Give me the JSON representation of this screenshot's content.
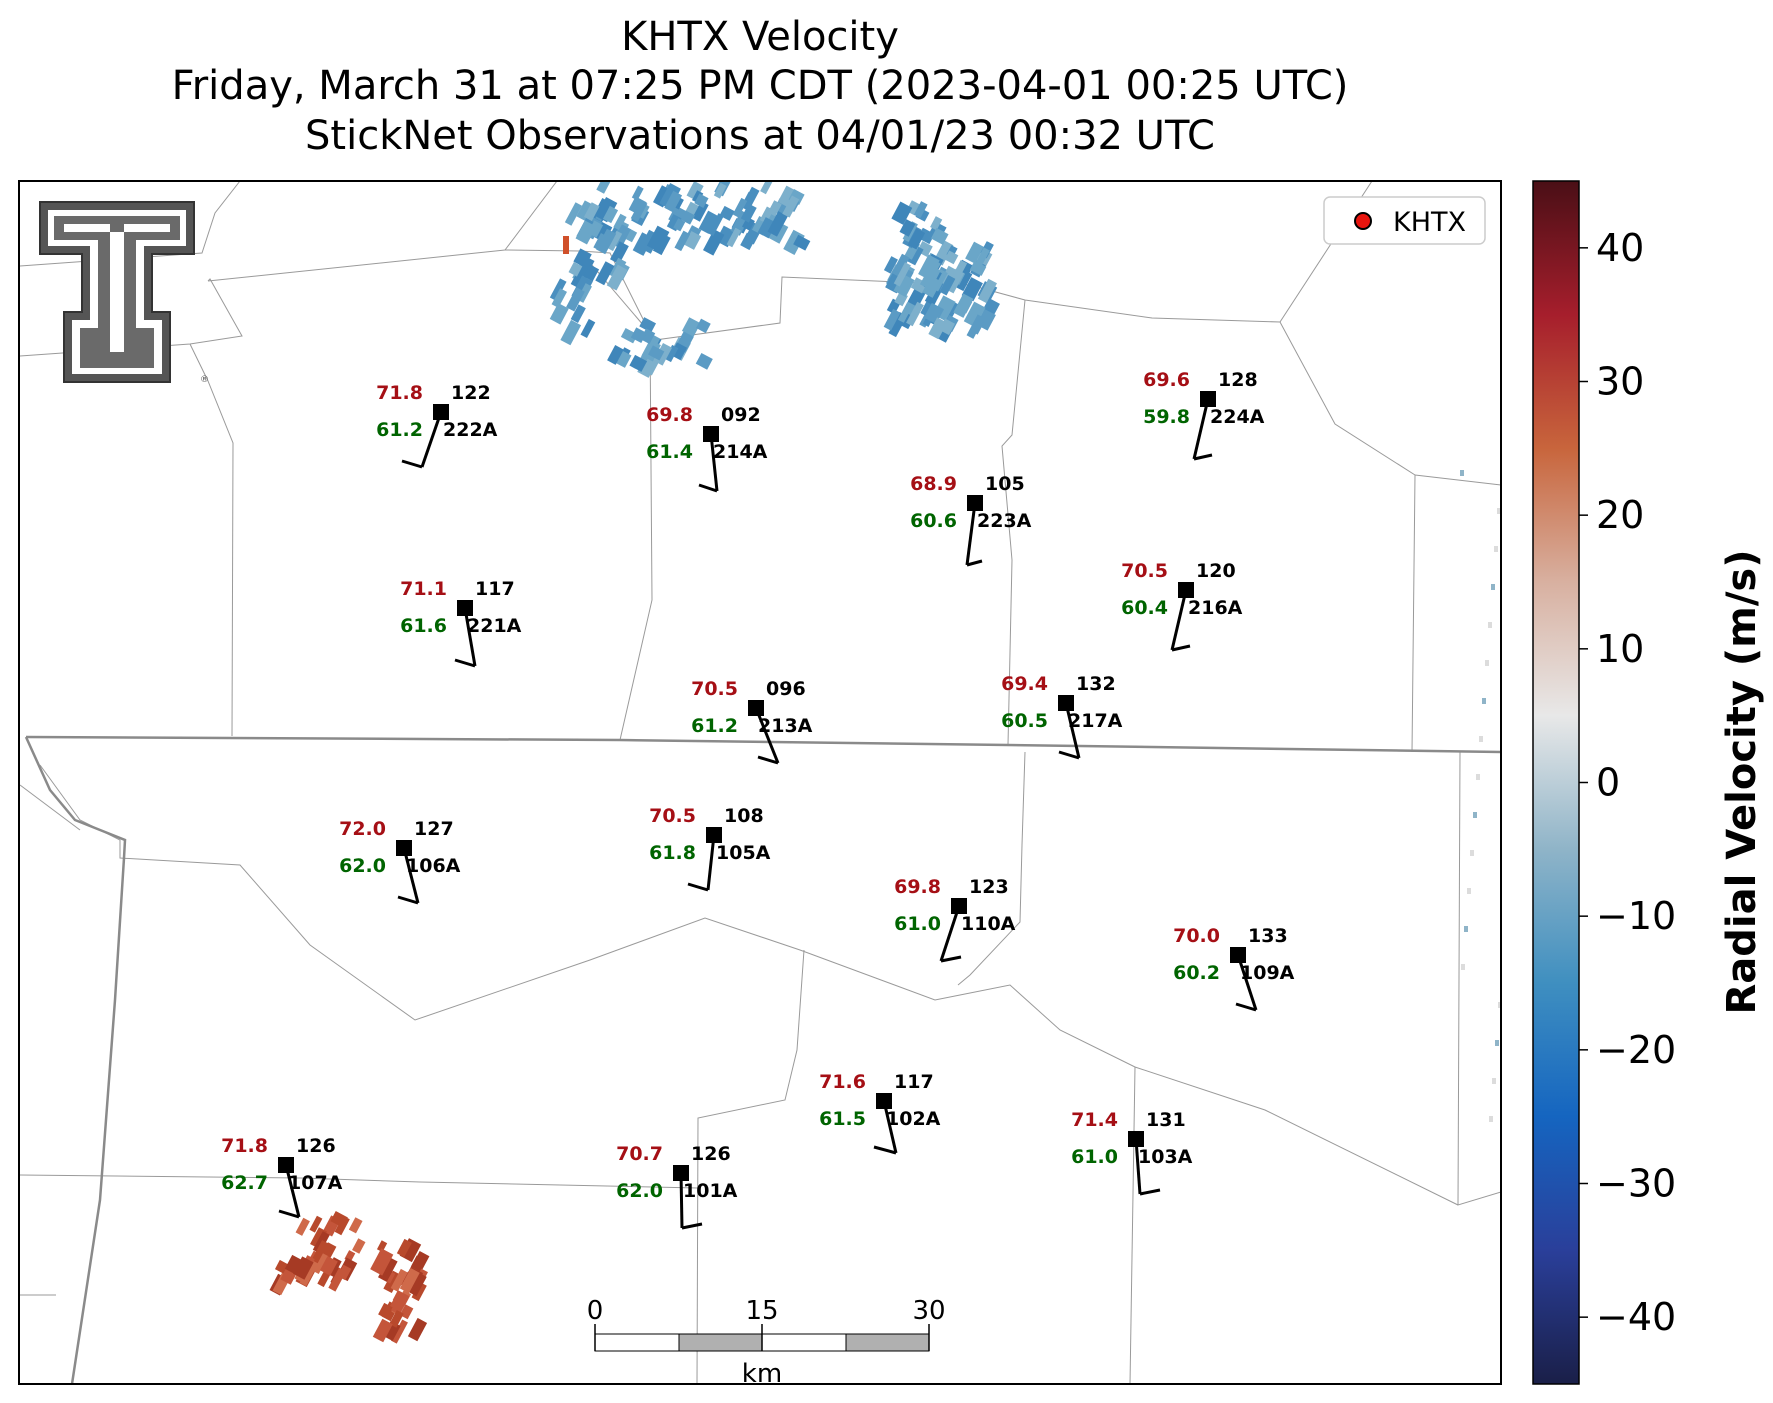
{
  "header": {
    "line1": "KHTX Velocity",
    "line2": "Friday, March 31 at 07:25 PM CDT (2023-04-01 00:25 UTC)",
    "line3": "StickNet Observations at 04/01/23 00:32 UTC"
  },
  "legend": {
    "label": "KHTX",
    "marker_color": "#e8150e"
  },
  "colorbar": {
    "label": "Radial Velocity (m/s)",
    "ticks": [
      "40",
      "30",
      "20",
      "10",
      "0",
      "−10",
      "−20",
      "−30",
      "−40"
    ],
    "min": -45,
    "max": 45,
    "colors": [
      "#1a1f48",
      "#2a3f9a",
      "#1565c0",
      "#3f8fc0",
      "#8fb4c8",
      "#e8e8e8",
      "#d8b0a0",
      "#c8653c",
      "#a61e2c",
      "#4a0f16"
    ]
  },
  "scalebar": {
    "labels": [
      "0",
      "15",
      "30"
    ],
    "unit": "km"
  },
  "logo": {
    "name": "texas-tech-double-t-logo",
    "text": "T"
  },
  "colors": {
    "temperature": "#a50f15",
    "dewpoint": "#006400",
    "id": "#000000"
  },
  "stations": [
    {
      "id": "222A",
      "temp": "71.8",
      "dew": "61.2",
      "pres": "122"
    },
    {
      "id": "214A",
      "temp": "69.8",
      "dew": "61.4",
      "pres": "092"
    },
    {
      "id": "223A",
      "temp": "68.9",
      "dew": "60.6",
      "pres": "105"
    },
    {
      "id": "224A",
      "temp": "69.6",
      "dew": "59.8",
      "pres": "128"
    },
    {
      "id": "221A",
      "temp": "71.1",
      "dew": "61.6",
      "pres": "117"
    },
    {
      "id": "216A",
      "temp": "70.5",
      "dew": "60.4",
      "pres": "120"
    },
    {
      "id": "213A",
      "temp": "70.5",
      "dew": "61.2",
      "pres": "096"
    },
    {
      "id": "217A",
      "temp": "69.4",
      "dew": "60.5",
      "pres": "132"
    },
    {
      "id": "106A",
      "temp": "72.0",
      "dew": "62.0",
      "pres": "127"
    },
    {
      "id": "105A",
      "temp": "70.5",
      "dew": "61.8",
      "pres": "108"
    },
    {
      "id": "110A",
      "temp": "69.8",
      "dew": "61.0",
      "pres": "123"
    },
    {
      "id": "109A",
      "temp": "70.0",
      "dew": "60.2",
      "pres": "133"
    },
    {
      "id": "102A",
      "temp": "71.6",
      "dew": "61.5",
      "pres": "117"
    },
    {
      "id": "103A",
      "temp": "71.4",
      "dew": "61.0",
      "pres": "131"
    },
    {
      "id": "107A",
      "temp": "71.8",
      "dew": "62.7",
      "pres": "126"
    },
    {
      "id": "101A",
      "temp": "70.7",
      "dew": "62.0",
      "pres": "126"
    }
  ]
}
